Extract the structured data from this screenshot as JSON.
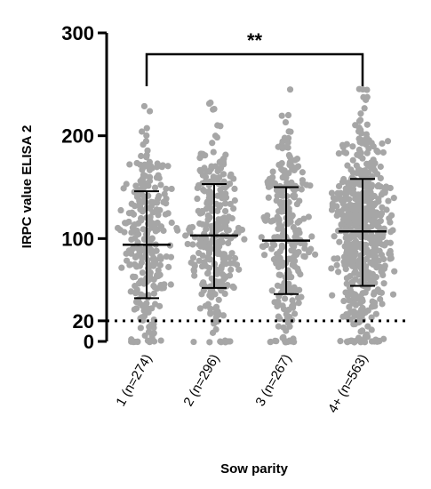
{
  "chart_data": {
    "type": "scatter",
    "xlabel": "Sow parity",
    "ylabel": "IRPC value ELISA 2",
    "ylim": [
      0,
      300
    ],
    "yticks": [
      0,
      20,
      100,
      200,
      300
    ],
    "grid": false,
    "cutoff_line": {
      "value": 20,
      "style": "dotted"
    },
    "categories": [
      "1 (n=274)",
      "2 (n=296)",
      "3 (n=267)",
      "4+ (n=563)"
    ],
    "series": [
      {
        "category": "1 (n=274)",
        "n": 274,
        "mean": 94,
        "sd_upper": 146,
        "sd_lower": 42,
        "min": 0,
        "max": 229
      },
      {
        "category": "2 (n=296)",
        "n": 296,
        "mean": 103,
        "sd_upper": 153,
        "sd_lower": 52,
        "min": 0,
        "max": 232
      },
      {
        "category": "3 (n=267)",
        "n": 267,
        "mean": 98,
        "sd_upper": 150,
        "sd_lower": 46,
        "min": 0,
        "max": 245
      },
      {
        "category": "4+ (n=563)",
        "n": 563,
        "mean": 107,
        "sd_upper": 158,
        "sd_lower": 54,
        "min": 0,
        "max": 245
      }
    ],
    "significance": {
      "from": "1 (n=274)",
      "to": "4+ (n=563)",
      "label": "**"
    },
    "point_color": "#a6a6a6",
    "line_color": "#000000"
  }
}
